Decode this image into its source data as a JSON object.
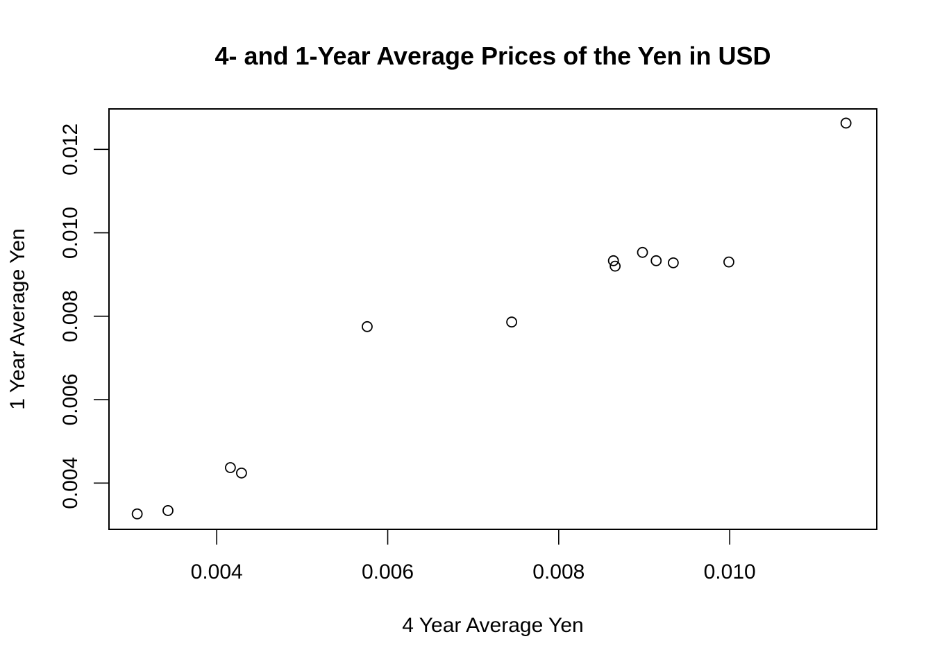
{
  "chart_data": {
    "type": "scatter",
    "title": "4- and 1-Year Average Prices of the Yen in USD",
    "xlabel": "4 Year Average Yen",
    "ylabel": "1 Year Average Yen",
    "xlim": [
      0.00274,
      0.01172
    ],
    "ylim": [
      0.00289,
      0.01297
    ],
    "x_ticks": [
      0.004,
      0.006,
      0.008,
      0.01
    ],
    "x_tick_labels": [
      "0.004",
      "0.006",
      "0.008",
      "0.010"
    ],
    "y_ticks": [
      0.004,
      0.006,
      0.008,
      0.01,
      0.012
    ],
    "y_tick_labels": [
      "0.004",
      "0.006",
      "0.008",
      "0.010",
      "0.012"
    ],
    "grid": false,
    "marker": "open-circle",
    "points": [
      {
        "x": 0.00307,
        "y": 0.00326
      },
      {
        "x": 0.00343,
        "y": 0.00334
      },
      {
        "x": 0.00416,
        "y": 0.00437
      },
      {
        "x": 0.00429,
        "y": 0.00424
      },
      {
        "x": 0.00576,
        "y": 0.00775
      },
      {
        "x": 0.00745,
        "y": 0.00786
      },
      {
        "x": 0.00864,
        "y": 0.00933
      },
      {
        "x": 0.00866,
        "y": 0.0092
      },
      {
        "x": 0.00898,
        "y": 0.00953
      },
      {
        "x": 0.00914,
        "y": 0.00933
      },
      {
        "x": 0.00934,
        "y": 0.00928
      },
      {
        "x": 0.00999,
        "y": 0.0093
      },
      {
        "x": 0.01136,
        "y": 0.01263
      }
    ]
  }
}
